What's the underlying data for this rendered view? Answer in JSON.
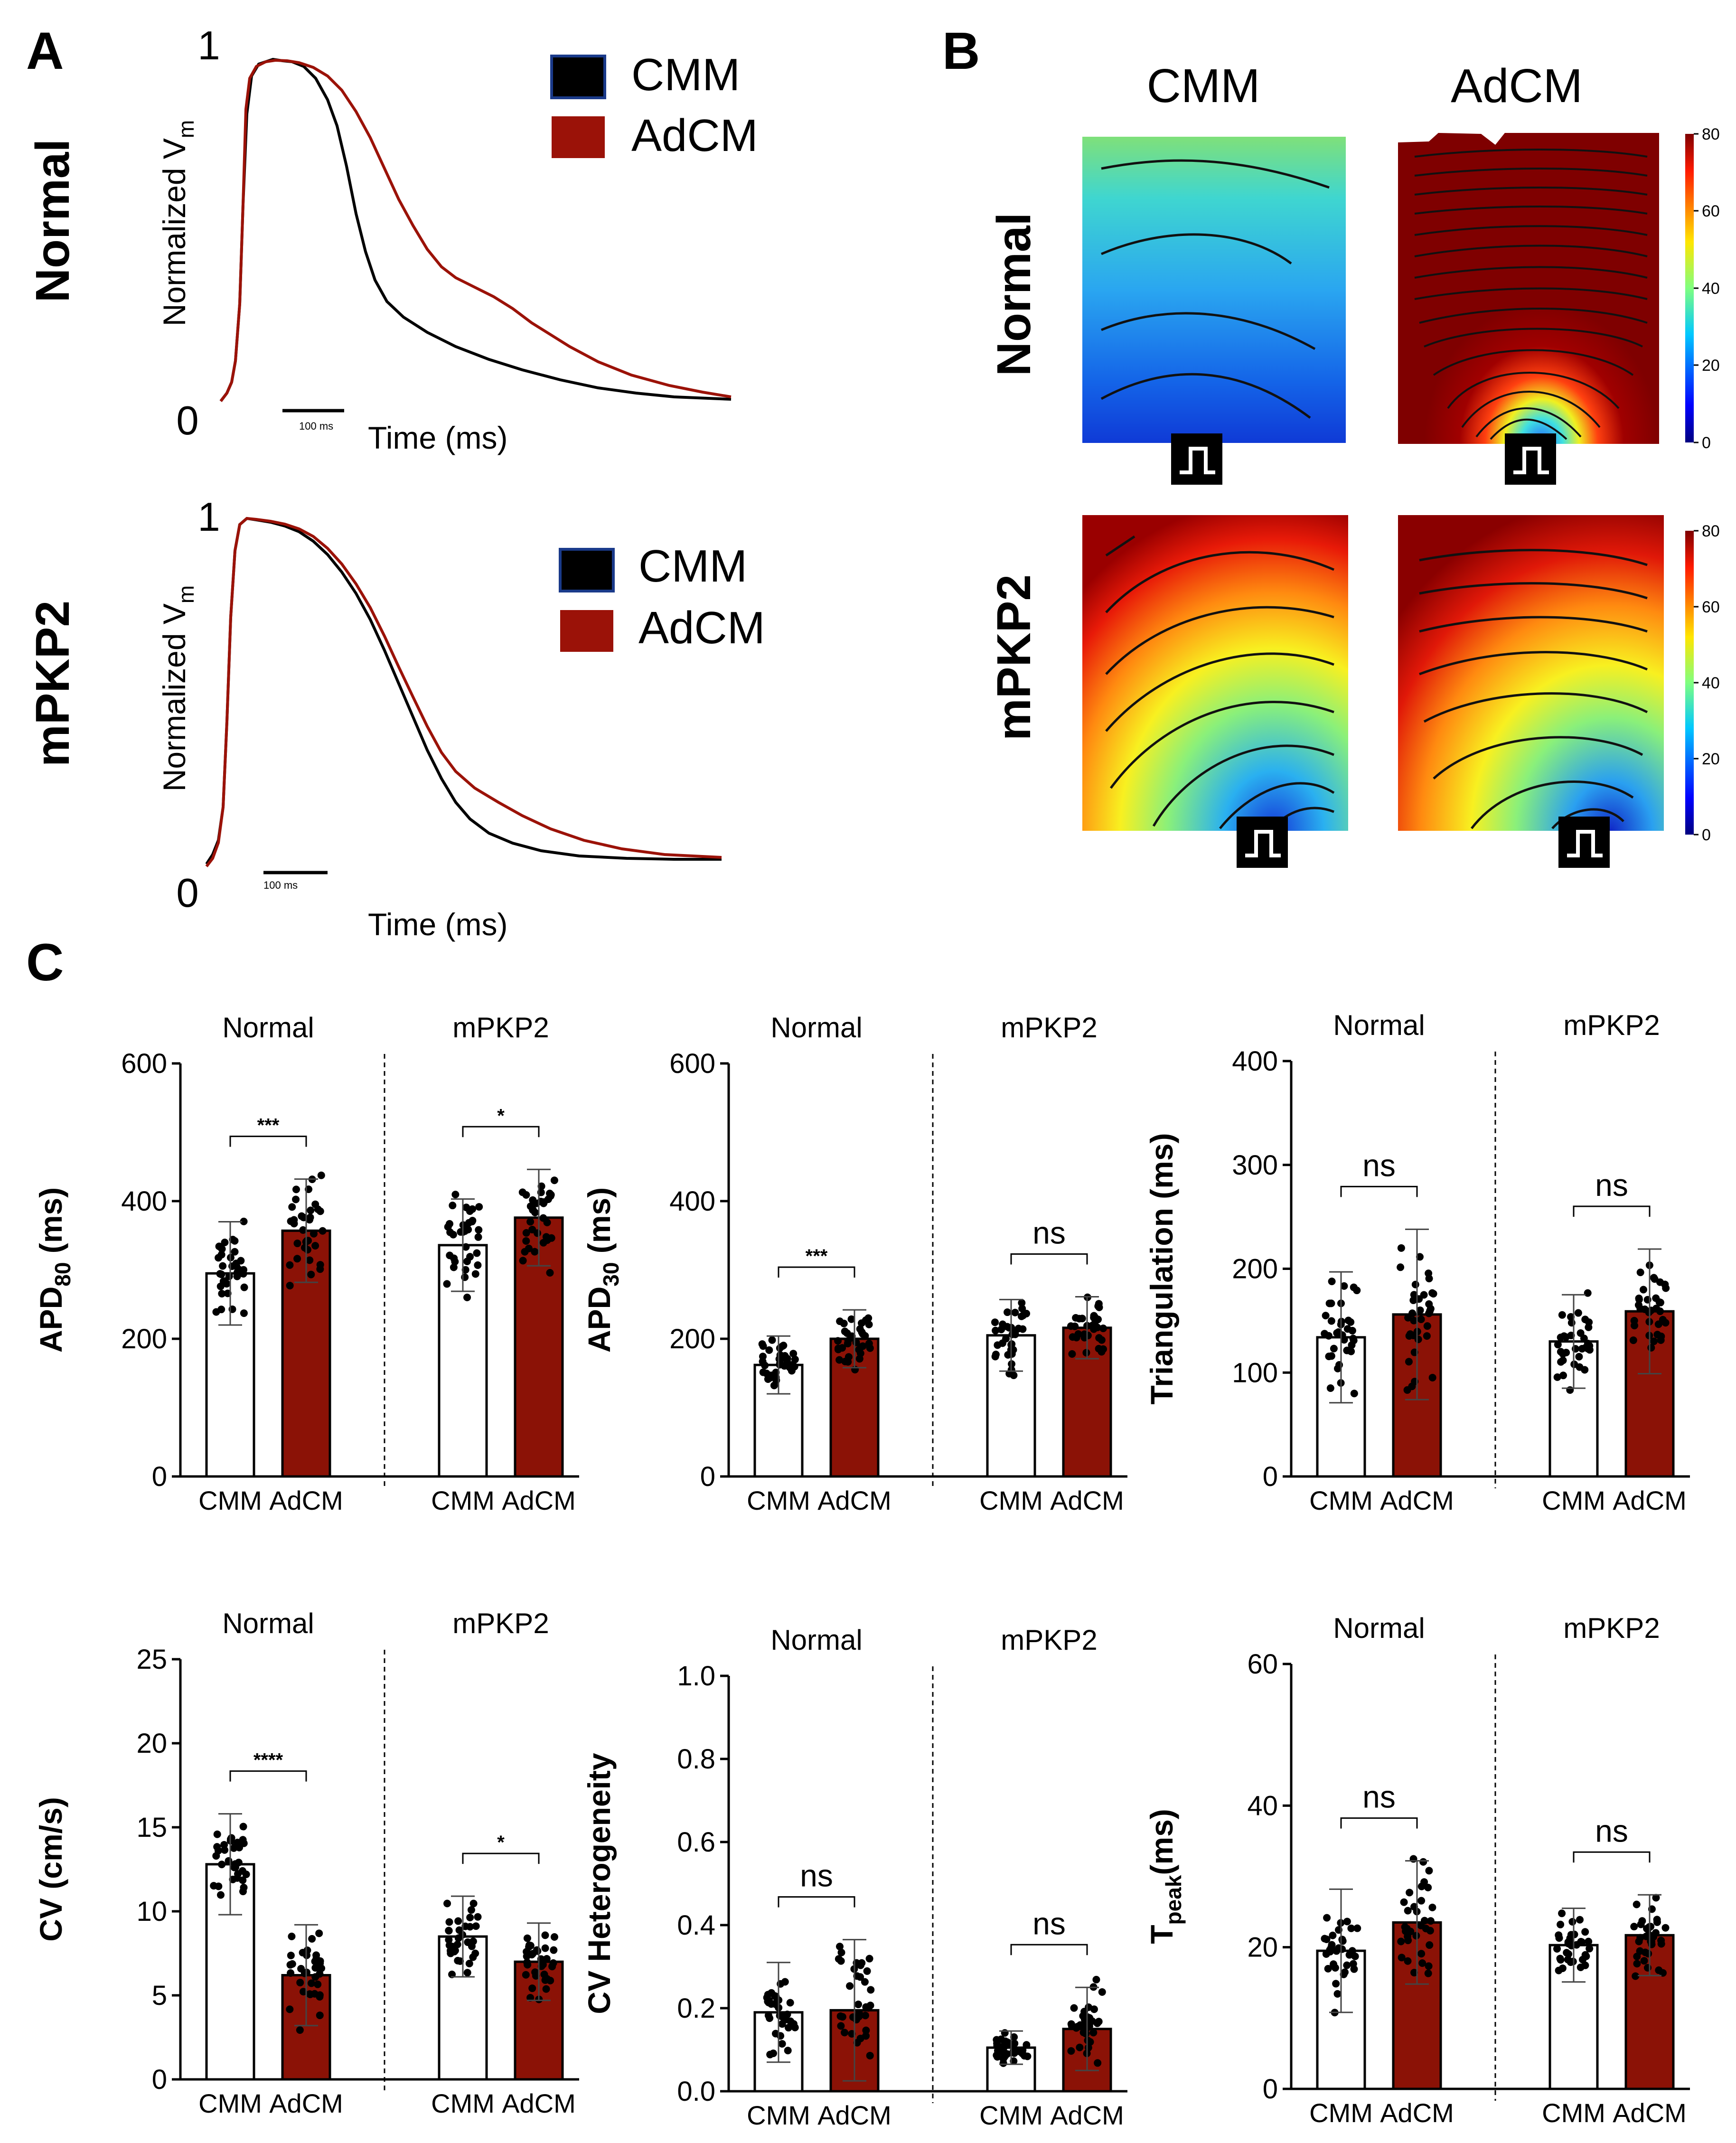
{
  "panel_labels": {
    "a": "A",
    "b": "B",
    "c": "C"
  },
  "colors": {
    "cmm": "#000000",
    "adcm": "#9b1208",
    "adcm_bar": "#8b1206",
    "cmm_bar": "#ffffff"
  },
  "panel_a": {
    "row_labels": [
      "Normal",
      "mPKP2"
    ],
    "ylabel": "Normalized V",
    "ylabel_sub": "m",
    "xlabel": "Time (ms)",
    "y_top": "1",
    "y_bottom": "0",
    "scalebar": "100 ms",
    "legend": [
      "CMM",
      "AdCM"
    ]
  },
  "panel_b": {
    "col_labels": [
      "CMM",
      "AdCM"
    ],
    "row_labels": [
      "Normal",
      "mPKP2"
    ],
    "colorbar_ticks": [
      "80",
      "60",
      "40",
      "20",
      "0"
    ]
  },
  "chart_data": [
    {
      "type": "bar",
      "title_left": "Normal",
      "title_right": "mPKP2",
      "ylabel": "APD",
      "ylabel_sub": "80",
      "ylabel_tail": " (ms)",
      "ylim": [
        0,
        600
      ],
      "yticks": [
        "0",
        "200",
        "400",
        "600"
      ],
      "categories": [
        "CMM",
        "AdCM",
        "CMM",
        "AdCM"
      ],
      "values": [
        295,
        357,
        336,
        376
      ],
      "errors": [
        75,
        75,
        67,
        70
      ],
      "sig": [
        "***",
        "*"
      ],
      "sig_small": [
        true,
        true
      ]
    },
    {
      "type": "bar",
      "title_left": "Normal",
      "title_right": "mPKP2",
      "ylabel": "APD",
      "ylabel_sub": "30",
      "ylabel_tail": " (ms)",
      "ylim": [
        0,
        600
      ],
      "yticks": [
        "0",
        "200",
        "400",
        "600"
      ],
      "categories": [
        "CMM",
        "AdCM",
        "CMM",
        "AdCM"
      ],
      "values": [
        162,
        200,
        205,
        216
      ],
      "errors": [
        42,
        42,
        52,
        45
      ],
      "sig": [
        "***",
        "ns"
      ],
      "sig_small": [
        true,
        false
      ]
    },
    {
      "type": "bar",
      "title_left": "Normal",
      "title_right": "mPKP2",
      "ylabel": "Triangulation (ms)",
      "ylabel_sub": "",
      "ylabel_tail": "",
      "ylim": [
        0,
        400
      ],
      "yticks": [
        "0",
        "100",
        "200",
        "300",
        "400"
      ],
      "categories": [
        "CMM",
        "AdCM",
        "CMM",
        "AdCM"
      ],
      "values": [
        134,
        156,
        130,
        159
      ],
      "errors": [
        63,
        82,
        45,
        60
      ],
      "sig": [
        "ns",
        "ns"
      ],
      "sig_small": [
        false,
        false
      ]
    },
    {
      "type": "bar",
      "title_left": "Normal",
      "title_right": "mPKP2",
      "ylabel": "CV (cm/s)",
      "ylabel_sub": "",
      "ylabel_tail": "",
      "ylim": [
        0,
        25
      ],
      "yticks": [
        "0",
        "5",
        "10",
        "15",
        "20",
        "25"
      ],
      "categories": [
        "CMM",
        "AdCM",
        "CMM",
        "AdCM"
      ],
      "values": [
        12.8,
        6.2,
        8.5,
        7.0
      ],
      "errors": [
        3.0,
        3.0,
        2.4,
        2.3
      ],
      "sig": [
        "****",
        "*"
      ],
      "sig_small": [
        true,
        true
      ]
    },
    {
      "type": "bar",
      "title_left": "Normal",
      "title_right": "mPKP2",
      "ylabel": "CV Heterogeneity",
      "ylabel_sub": "",
      "ylabel_tail": "",
      "ylim": [
        0,
        1.0
      ],
      "yticks": [
        "0.0",
        "0.2",
        "0.4",
        "0.6",
        "0.8",
        "1.0"
      ],
      "categories": [
        "CMM",
        "AdCM",
        "CMM",
        "AdCM"
      ],
      "values": [
        0.19,
        0.195,
        0.105,
        0.15
      ],
      "errors": [
        0.12,
        0.17,
        0.04,
        0.1
      ],
      "sig": [
        "ns",
        "ns"
      ],
      "sig_small": [
        false,
        false
      ]
    },
    {
      "type": "bar",
      "title_left": "Normal",
      "title_right": "mPKP2",
      "ylabel": "T",
      "ylabel_sub": "peak",
      "ylabel_tail": "(ms)",
      "ylim": [
        0,
        60
      ],
      "yticks": [
        "0",
        "20",
        "40",
        "60"
      ],
      "categories": [
        "CMM",
        "AdCM",
        "CMM",
        "AdCM"
      ],
      "values": [
        19.5,
        23.5,
        20.3,
        21.7
      ],
      "errors": [
        8.7,
        8.7,
        5.2,
        5.7
      ],
      "sig": [
        "ns",
        "ns"
      ],
      "sig_small": [
        false,
        false
      ]
    }
  ]
}
